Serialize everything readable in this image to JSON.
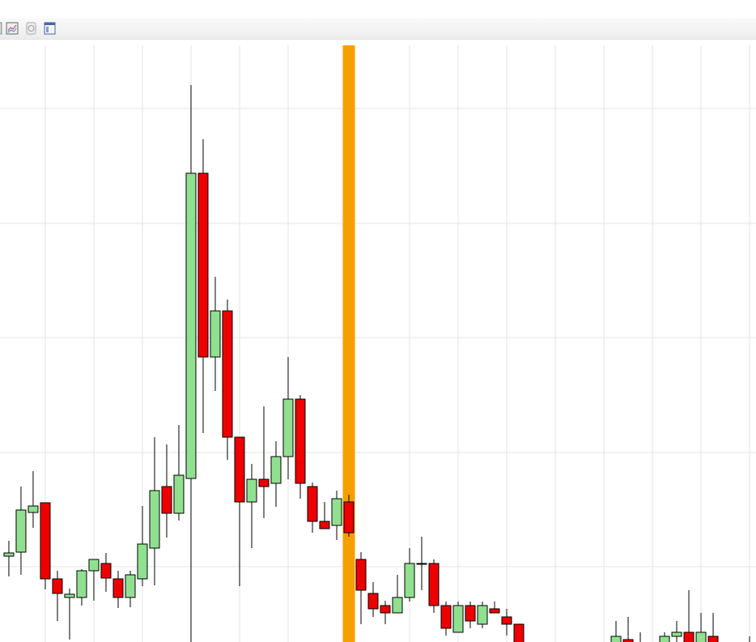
{
  "chart_data": {
    "type": "candlestick",
    "x": [
      0,
      1,
      2,
      3,
      4,
      5,
      6,
      7,
      8,
      9,
      10,
      11,
      12,
      13,
      14,
      15,
      16,
      17,
      18,
      19,
      20,
      21,
      22,
      23,
      24,
      25,
      26,
      27,
      28,
      29,
      30,
      31,
      32,
      33,
      34,
      35,
      36,
      37,
      38,
      39,
      40,
      41,
      42,
      43,
      44,
      45,
      46,
      47,
      48,
      49,
      50,
      51,
      52,
      53,
      54,
      55,
      56,
      57,
      58,
      59,
      60,
      61
    ],
    "open": [
      113,
      118,
      167,
      179,
      85,
      62,
      62,
      95,
      104,
      85,
      62,
      85,
      123,
      199,
      166,
      209,
      586,
      359,
      416,
      260,
      180,
      208,
      203,
      236,
      307,
      199,
      156,
      151,
      180,
      109,
      67,
      52,
      43,
      62,
      104,
      104,
      52,
      19,
      52,
      29,
      48,
      38,
      29,
      null,
      null,
      null,
      null,
      null,
      null,
      null,
      -5,
      10,
      -5,
      null,
      -5,
      14,
      19,
      -5,
      14,
      null,
      null,
      -5
    ],
    "close": [
      117,
      170,
      175,
      85,
      67,
      66,
      95,
      109,
      86,
      62,
      90,
      128,
      194,
      166,
      213,
      586,
      359,
      416,
      260,
      180,
      208,
      199,
      236,
      307,
      203,
      156,
      147,
      184,
      142,
      71,
      48,
      43,
      62,
      104,
      104,
      52,
      24,
      52,
      33,
      52,
      43,
      29,
      -5,
      null,
      null,
      null,
      null,
      null,
      null,
      null,
      14,
      -5,
      -5,
      null,
      14,
      19,
      -5,
      19,
      -5,
      null,
      null,
      -5
    ],
    "high": [
      132,
      199,
      218,
      179,
      95,
      73,
      97,
      109,
      117,
      95,
      95,
      175,
      260,
      251,
      275,
      695,
      628,
      458,
      430,
      260,
      227,
      298,
      255,
      359,
      312,
      204,
      180,
      194,
      189,
      118,
      81,
      58,
      90,
      123,
      137,
      109,
      57,
      57,
      57,
      57,
      57,
      48,
      29,
      null,
      null,
      null,
      null,
      null,
      null,
      null,
      33,
      38,
      19,
      null,
      19,
      33,
      71,
      43,
      43,
      null,
      null,
      14
    ],
    "low": [
      88,
      90,
      148,
      72,
      33,
      10,
      52,
      58,
      69,
      49,
      50,
      76,
      77,
      136,
      157,
      7,
      265,
      317,
      232,
      76,
      123,
      160,
      174,
      208,
      184,
      142,
      147,
      133,
      137,
      29,
      38,
      29,
      43,
      57,
      71,
      43,
      15,
      19,
      24,
      24,
      43,
      15,
      -5,
      null,
      null,
      null,
      null,
      null,
      null,
      null,
      -5,
      -5,
      -5,
      null,
      -5,
      -5,
      -5,
      -5,
      -5,
      null,
      null,
      -5
    ],
    "up_color": "#90e090",
    "down_color": "#ee0000",
    "edge_color": "#000000",
    "xlim": [
      -0.73,
      61.53
    ],
    "ylim": [
      7,
      744
    ],
    "xticks": [
      3,
      7,
      11,
      15,
      19,
      23,
      33,
      37,
      41,
      45,
      49,
      53,
      57,
      61
    ],
    "yticks": [
      100,
      241,
      383,
      524,
      666
    ],
    "grid": true,
    "highlight_x": 28,
    "highlight_color": "#f5a000"
  }
}
